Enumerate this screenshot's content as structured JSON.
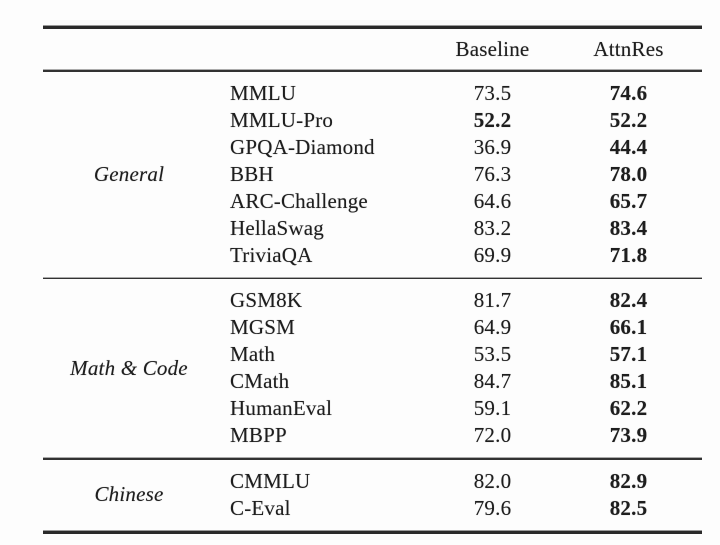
{
  "table": {
    "columns": {
      "baseline": "Baseline",
      "attnres": "AttnRes"
    },
    "sections": [
      {
        "category": "General",
        "rows": [
          {
            "name": "MMLU",
            "baseline": "73.5",
            "attnres": "74.6",
            "baseline_bold": false,
            "attnres_bold": true
          },
          {
            "name": "MMLU-Pro",
            "baseline": "52.2",
            "attnres": "52.2",
            "baseline_bold": true,
            "attnres_bold": true
          },
          {
            "name": "GPQA-Diamond",
            "baseline": "36.9",
            "attnres": "44.4",
            "baseline_bold": false,
            "attnres_bold": true
          },
          {
            "name": "BBH",
            "baseline": "76.3",
            "attnres": "78.0",
            "baseline_bold": false,
            "attnres_bold": true
          },
          {
            "name": "ARC-Challenge",
            "baseline": "64.6",
            "attnres": "65.7",
            "baseline_bold": false,
            "attnres_bold": true
          },
          {
            "name": "HellaSwag",
            "baseline": "83.2",
            "attnres": "83.4",
            "baseline_bold": false,
            "attnres_bold": true
          },
          {
            "name": "TriviaQA",
            "baseline": "69.9",
            "attnres": "71.8",
            "baseline_bold": false,
            "attnres_bold": true
          }
        ]
      },
      {
        "category": "Math & Code",
        "rows": [
          {
            "name": "GSM8K",
            "baseline": "81.7",
            "attnres": "82.4",
            "baseline_bold": false,
            "attnres_bold": true
          },
          {
            "name": "MGSM",
            "baseline": "64.9",
            "attnres": "66.1",
            "baseline_bold": false,
            "attnres_bold": true
          },
          {
            "name": "Math",
            "baseline": "53.5",
            "attnres": "57.1",
            "baseline_bold": false,
            "attnres_bold": true
          },
          {
            "name": "CMath",
            "baseline": "84.7",
            "attnres": "85.1",
            "baseline_bold": false,
            "attnres_bold": true
          },
          {
            "name": "HumanEval",
            "baseline": "59.1",
            "attnres": "62.2",
            "baseline_bold": false,
            "attnres_bold": true
          },
          {
            "name": "MBPP",
            "baseline": "72.0",
            "attnres": "73.9",
            "baseline_bold": false,
            "attnres_bold": true
          }
        ]
      },
      {
        "category": "Chinese",
        "rows": [
          {
            "name": "CMMLU",
            "baseline": "82.0",
            "attnres": "82.9",
            "baseline_bold": false,
            "attnres_bold": true
          },
          {
            "name": "C-Eval",
            "baseline": "79.6",
            "attnres": "82.5",
            "baseline_bold": false,
            "attnres_bold": true
          }
        ]
      }
    ]
  }
}
